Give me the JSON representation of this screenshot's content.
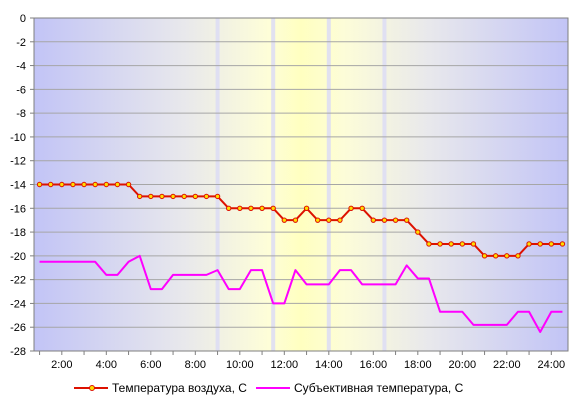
{
  "chart_data": {
    "type": "line",
    "x": [
      1,
      1.5,
      2,
      2.5,
      3,
      3.5,
      4,
      4.5,
      5,
      5.5,
      6,
      6.5,
      7,
      7.5,
      8,
      8.5,
      9,
      9.5,
      10,
      10.5,
      11,
      11.5,
      12,
      12.5,
      13,
      13.5,
      14,
      14.5,
      15,
      15.5,
      16,
      16.5,
      17,
      17.5,
      18,
      18.5,
      19,
      19.5,
      20,
      20.5,
      21,
      21.5,
      22,
      22.5,
      23,
      23.5,
      24,
      24.5
    ],
    "x_ticks": [
      2,
      4,
      6,
      8,
      10,
      12,
      14,
      16,
      18,
      20,
      22,
      24
    ],
    "x_tick_labels": [
      "2:00",
      "4:00",
      "6:00",
      "8:00",
      "10:00",
      "12:00",
      "14:00",
      "16:00",
      "18:00",
      "20:00",
      "22:00",
      "24:00"
    ],
    "xlim": [
      0.75,
      24.75
    ],
    "ylim": [
      -28,
      0
    ],
    "y_ticks": [
      0,
      -2,
      -4,
      -6,
      -8,
      -10,
      -12,
      -14,
      -16,
      -18,
      -20,
      -22,
      -24,
      -26,
      -28
    ],
    "y_tick_labels": [
      "0",
      "-2",
      "-4",
      "-6",
      "-8",
      "-10",
      "-12",
      "-14",
      "-16",
      "-18",
      "-20",
      "-22",
      "-24",
      "-26",
      "-28"
    ],
    "grid": true,
    "legend_position": "bottom",
    "series": [
      {
        "name": "Температура воздуха, С",
        "color": "#dd1100",
        "marker": "dot",
        "values": [
          -14,
          -14,
          -14,
          -14,
          -14,
          -14,
          -14,
          -14,
          -14,
          -15,
          -15,
          -15,
          -15,
          -15,
          -15,
          -15,
          -15,
          -16,
          -16,
          -16,
          -16,
          -16,
          -17,
          -17,
          -16,
          -17,
          -17,
          -17,
          -16,
          -16,
          -17,
          -17,
          -17,
          -17,
          -18,
          -19,
          -19,
          -19,
          -19,
          -19,
          -20,
          -20,
          -20,
          -20,
          -19,
          -19,
          -19,
          -19
        ]
      },
      {
        "name": "Субъективная температура, С",
        "color": "#ff00ff",
        "marker": "none",
        "values": [
          -20.5,
          -20.5,
          -20.5,
          -20.5,
          -20.5,
          -20.5,
          -21.6,
          -21.6,
          -20.5,
          -20,
          -22.8,
          -22.8,
          -21.6,
          -21.6,
          -21.6,
          -21.6,
          -21.2,
          -22.8,
          -22.8,
          -21.2,
          -21.2,
          -24,
          -24,
          -21.2,
          -22.4,
          -22.4,
          -22.4,
          -21.2,
          -21.2,
          -22.4,
          -22.4,
          -22.4,
          -22.4,
          -20.8,
          -21.9,
          -21.9,
          -24.7,
          -24.7,
          -24.7,
          -25.8,
          -25.8,
          -25.8,
          -25.8,
          -24.7,
          -24.7,
          -26.4,
          -24.7,
          -24.7
        ]
      }
    ]
  }
}
